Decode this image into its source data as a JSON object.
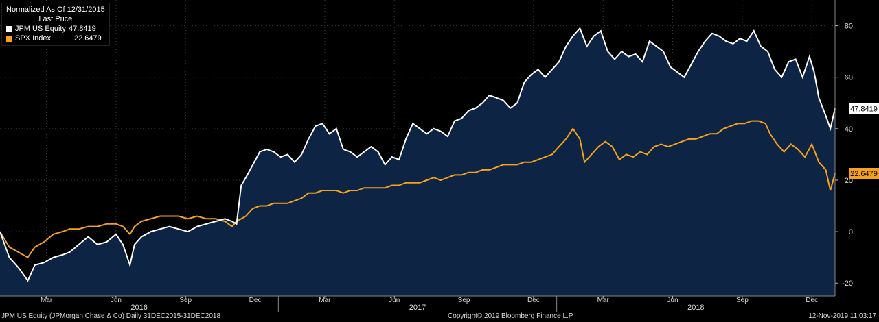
{
  "legend": {
    "title": "Normalized As Of 12/31/2015",
    "subtitle": "Last Price",
    "entries": [
      {
        "name": "JPM US Equity",
        "value": "47.8419"
      },
      {
        "name": "SPX Index",
        "value": "22.6479"
      }
    ]
  },
  "footer": {
    "left": "JPM US Equity (JPMorgan Chase & Co)  Daily 31DEC2015-31DEC2018",
    "center": "Copyright© 2019 Bloomberg Finance L.P.",
    "right": "12-Nov-2019 11:03:17"
  },
  "chart_data": {
    "type": "line",
    "ylim": [
      -25,
      90
    ],
    "yticks": [
      -20,
      0,
      20,
      40,
      60,
      80
    ],
    "xlim": [
      0,
      36
    ],
    "month_ticks": [
      {
        "label": "Mar",
        "x": 2
      },
      {
        "label": "Jun",
        "x": 5
      },
      {
        "label": "Sep",
        "x": 8
      },
      {
        "label": "Dec",
        "x": 11
      },
      {
        "label": "Mar",
        "x": 14
      },
      {
        "label": "Jun",
        "x": 17
      },
      {
        "label": "Sep",
        "x": 20
      },
      {
        "label": "Dec",
        "x": 23
      },
      {
        "label": "Mar",
        "x": 26
      },
      {
        "label": "Jun",
        "x": 29
      },
      {
        "label": "Sep",
        "x": 32
      },
      {
        "label": "Dec",
        "x": 35
      }
    ],
    "year_ticks": [
      {
        "label": "2016",
        "x": 6
      },
      {
        "label": "2017",
        "x": 18
      },
      {
        "label": "2018",
        "x": 30
      }
    ],
    "colors": {
      "jpm": "#ffffff",
      "spx": "#f7a21b",
      "fill": "#0d2444"
    },
    "series": [
      {
        "name": "JPM US Equity",
        "last_label": "47.8419",
        "points": [
          [
            0,
            0
          ],
          [
            0.4,
            -10
          ],
          [
            0.8,
            -14
          ],
          [
            1.2,
            -19
          ],
          [
            1.5,
            -13
          ],
          [
            1.9,
            -12
          ],
          [
            2.3,
            -10
          ],
          [
            2.7,
            -9
          ],
          [
            3.0,
            -8
          ],
          [
            3.4,
            -5
          ],
          [
            3.8,
            -2
          ],
          [
            4.2,
            -5
          ],
          [
            4.6,
            -4
          ],
          [
            5.0,
            -1
          ],
          [
            5.3,
            -5
          ],
          [
            5.6,
            -13
          ],
          [
            5.8,
            -5
          ],
          [
            6.1,
            -2
          ],
          [
            6.5,
            0
          ],
          [
            6.9,
            1
          ],
          [
            7.3,
            2
          ],
          [
            7.7,
            1
          ],
          [
            8.1,
            0
          ],
          [
            8.5,
            2
          ],
          [
            8.9,
            3
          ],
          [
            9.3,
            4
          ],
          [
            9.7,
            5
          ],
          [
            10.0,
            4
          ],
          [
            10.2,
            3
          ],
          [
            10.4,
            18
          ],
          [
            10.6,
            21
          ],
          [
            10.9,
            26
          ],
          [
            11.2,
            31
          ],
          [
            11.5,
            32
          ],
          [
            11.8,
            31
          ],
          [
            12.1,
            29
          ],
          [
            12.4,
            30
          ],
          [
            12.7,
            27
          ],
          [
            13.0,
            30
          ],
          [
            13.3,
            36
          ],
          [
            13.6,
            41
          ],
          [
            13.9,
            42
          ],
          [
            14.2,
            38
          ],
          [
            14.5,
            40
          ],
          [
            14.8,
            32
          ],
          [
            15.1,
            31
          ],
          [
            15.4,
            29
          ],
          [
            15.7,
            31
          ],
          [
            16.0,
            33
          ],
          [
            16.3,
            31
          ],
          [
            16.6,
            26
          ],
          [
            16.9,
            29
          ],
          [
            17.2,
            28
          ],
          [
            17.5,
            36
          ],
          [
            17.8,
            42
          ],
          [
            18.1,
            40
          ],
          [
            18.4,
            38
          ],
          [
            18.7,
            40
          ],
          [
            19.0,
            39
          ],
          [
            19.3,
            37
          ],
          [
            19.6,
            43
          ],
          [
            19.9,
            44
          ],
          [
            20.2,
            47
          ],
          [
            20.5,
            48
          ],
          [
            20.8,
            50
          ],
          [
            21.1,
            53
          ],
          [
            21.4,
            52
          ],
          [
            21.7,
            51
          ],
          [
            22.0,
            48
          ],
          [
            22.3,
            50
          ],
          [
            22.6,
            58
          ],
          [
            22.9,
            61
          ],
          [
            23.2,
            63
          ],
          [
            23.5,
            60
          ],
          [
            23.8,
            63
          ],
          [
            24.1,
            66
          ],
          [
            24.4,
            72
          ],
          [
            24.7,
            76
          ],
          [
            25.0,
            79
          ],
          [
            25.3,
            72
          ],
          [
            25.6,
            76
          ],
          [
            25.9,
            78
          ],
          [
            26.2,
            70
          ],
          [
            26.5,
            67
          ],
          [
            26.8,
            70
          ],
          [
            27.1,
            68
          ],
          [
            27.4,
            69
          ],
          [
            27.7,
            66
          ],
          [
            28.0,
            74
          ],
          [
            28.3,
            72
          ],
          [
            28.6,
            70
          ],
          [
            28.9,
            64
          ],
          [
            29.2,
            62
          ],
          [
            29.5,
            60
          ],
          [
            29.8,
            65
          ],
          [
            30.1,
            70
          ],
          [
            30.4,
            74
          ],
          [
            30.7,
            77
          ],
          [
            31.0,
            76
          ],
          [
            31.3,
            74
          ],
          [
            31.6,
            73
          ],
          [
            31.9,
            75
          ],
          [
            32.2,
            74
          ],
          [
            32.5,
            78
          ],
          [
            32.8,
            72
          ],
          [
            33.1,
            70
          ],
          [
            33.4,
            63
          ],
          [
            33.7,
            60
          ],
          [
            34.0,
            66
          ],
          [
            34.3,
            67
          ],
          [
            34.6,
            60
          ],
          [
            34.9,
            68
          ],
          [
            35.1,
            62
          ],
          [
            35.3,
            52
          ],
          [
            35.6,
            45
          ],
          [
            35.8,
            40
          ],
          [
            36.0,
            47.84
          ]
        ]
      },
      {
        "name": "SPX Index",
        "last_label": "22.6479",
        "points": [
          [
            0,
            0
          ],
          [
            0.4,
            -6
          ],
          [
            0.8,
            -8
          ],
          [
            1.2,
            -10
          ],
          [
            1.5,
            -6
          ],
          [
            1.9,
            -4
          ],
          [
            2.3,
            -1
          ],
          [
            2.7,
            0
          ],
          [
            3.0,
            1
          ],
          [
            3.4,
            1
          ],
          [
            3.8,
            2
          ],
          [
            4.2,
            2
          ],
          [
            4.6,
            3
          ],
          [
            5.0,
            3
          ],
          [
            5.3,
            2
          ],
          [
            5.6,
            -1
          ],
          [
            5.8,
            2
          ],
          [
            6.1,
            4
          ],
          [
            6.5,
            5
          ],
          [
            6.9,
            6
          ],
          [
            7.3,
            6
          ],
          [
            7.7,
            6
          ],
          [
            8.1,
            5
          ],
          [
            8.5,
            6
          ],
          [
            8.9,
            5
          ],
          [
            9.3,
            5
          ],
          [
            9.7,
            4
          ],
          [
            10.0,
            2
          ],
          [
            10.2,
            4
          ],
          [
            10.6,
            6
          ],
          [
            10.9,
            9
          ],
          [
            11.2,
            10
          ],
          [
            11.5,
            10
          ],
          [
            11.8,
            11
          ],
          [
            12.1,
            11
          ],
          [
            12.4,
            11
          ],
          [
            12.7,
            12
          ],
          [
            13.0,
            13
          ],
          [
            13.3,
            15
          ],
          [
            13.6,
            15
          ],
          [
            13.9,
            16
          ],
          [
            14.2,
            16
          ],
          [
            14.5,
            16
          ],
          [
            14.8,
            15
          ],
          [
            15.1,
            16
          ],
          [
            15.4,
            16
          ],
          [
            15.7,
            17
          ],
          [
            16.0,
            17
          ],
          [
            16.3,
            17
          ],
          [
            16.6,
            17
          ],
          [
            16.9,
            18
          ],
          [
            17.2,
            18
          ],
          [
            17.5,
            19
          ],
          [
            17.8,
            19
          ],
          [
            18.1,
            19
          ],
          [
            18.4,
            20
          ],
          [
            18.7,
            21
          ],
          [
            19.0,
            20
          ],
          [
            19.3,
            21
          ],
          [
            19.6,
            22
          ],
          [
            19.9,
            22
          ],
          [
            20.2,
            23
          ],
          [
            20.5,
            23
          ],
          [
            20.8,
            24
          ],
          [
            21.1,
            24
          ],
          [
            21.4,
            25
          ],
          [
            21.7,
            26
          ],
          [
            22.0,
            26
          ],
          [
            22.3,
            26
          ],
          [
            22.6,
            27
          ],
          [
            22.9,
            27
          ],
          [
            23.2,
            28
          ],
          [
            23.5,
            29
          ],
          [
            23.8,
            30
          ],
          [
            24.1,
            33
          ],
          [
            24.4,
            36
          ],
          [
            24.7,
            40
          ],
          [
            25.0,
            36
          ],
          [
            25.2,
            27
          ],
          [
            25.5,
            30
          ],
          [
            25.8,
            33
          ],
          [
            26.1,
            35
          ],
          [
            26.4,
            33
          ],
          [
            26.7,
            28
          ],
          [
            27.0,
            30
          ],
          [
            27.3,
            29
          ],
          [
            27.6,
            31
          ],
          [
            27.9,
            30
          ],
          [
            28.2,
            33
          ],
          [
            28.5,
            34
          ],
          [
            28.8,
            33
          ],
          [
            29.1,
            34
          ],
          [
            29.4,
            35
          ],
          [
            29.7,
            36
          ],
          [
            30.0,
            36
          ],
          [
            30.3,
            37
          ],
          [
            30.6,
            38
          ],
          [
            30.9,
            38
          ],
          [
            31.2,
            40
          ],
          [
            31.5,
            41
          ],
          [
            31.8,
            42
          ],
          [
            32.1,
            42
          ],
          [
            32.4,
            43
          ],
          [
            32.7,
            43
          ],
          [
            33.0,
            42
          ],
          [
            33.2,
            38
          ],
          [
            33.5,
            34
          ],
          [
            33.8,
            31
          ],
          [
            34.1,
            34
          ],
          [
            34.4,
            32
          ],
          [
            34.7,
            29
          ],
          [
            35.0,
            34
          ],
          [
            35.3,
            27
          ],
          [
            35.6,
            24
          ],
          [
            35.8,
            16
          ],
          [
            36.0,
            22.65
          ]
        ]
      }
    ]
  }
}
